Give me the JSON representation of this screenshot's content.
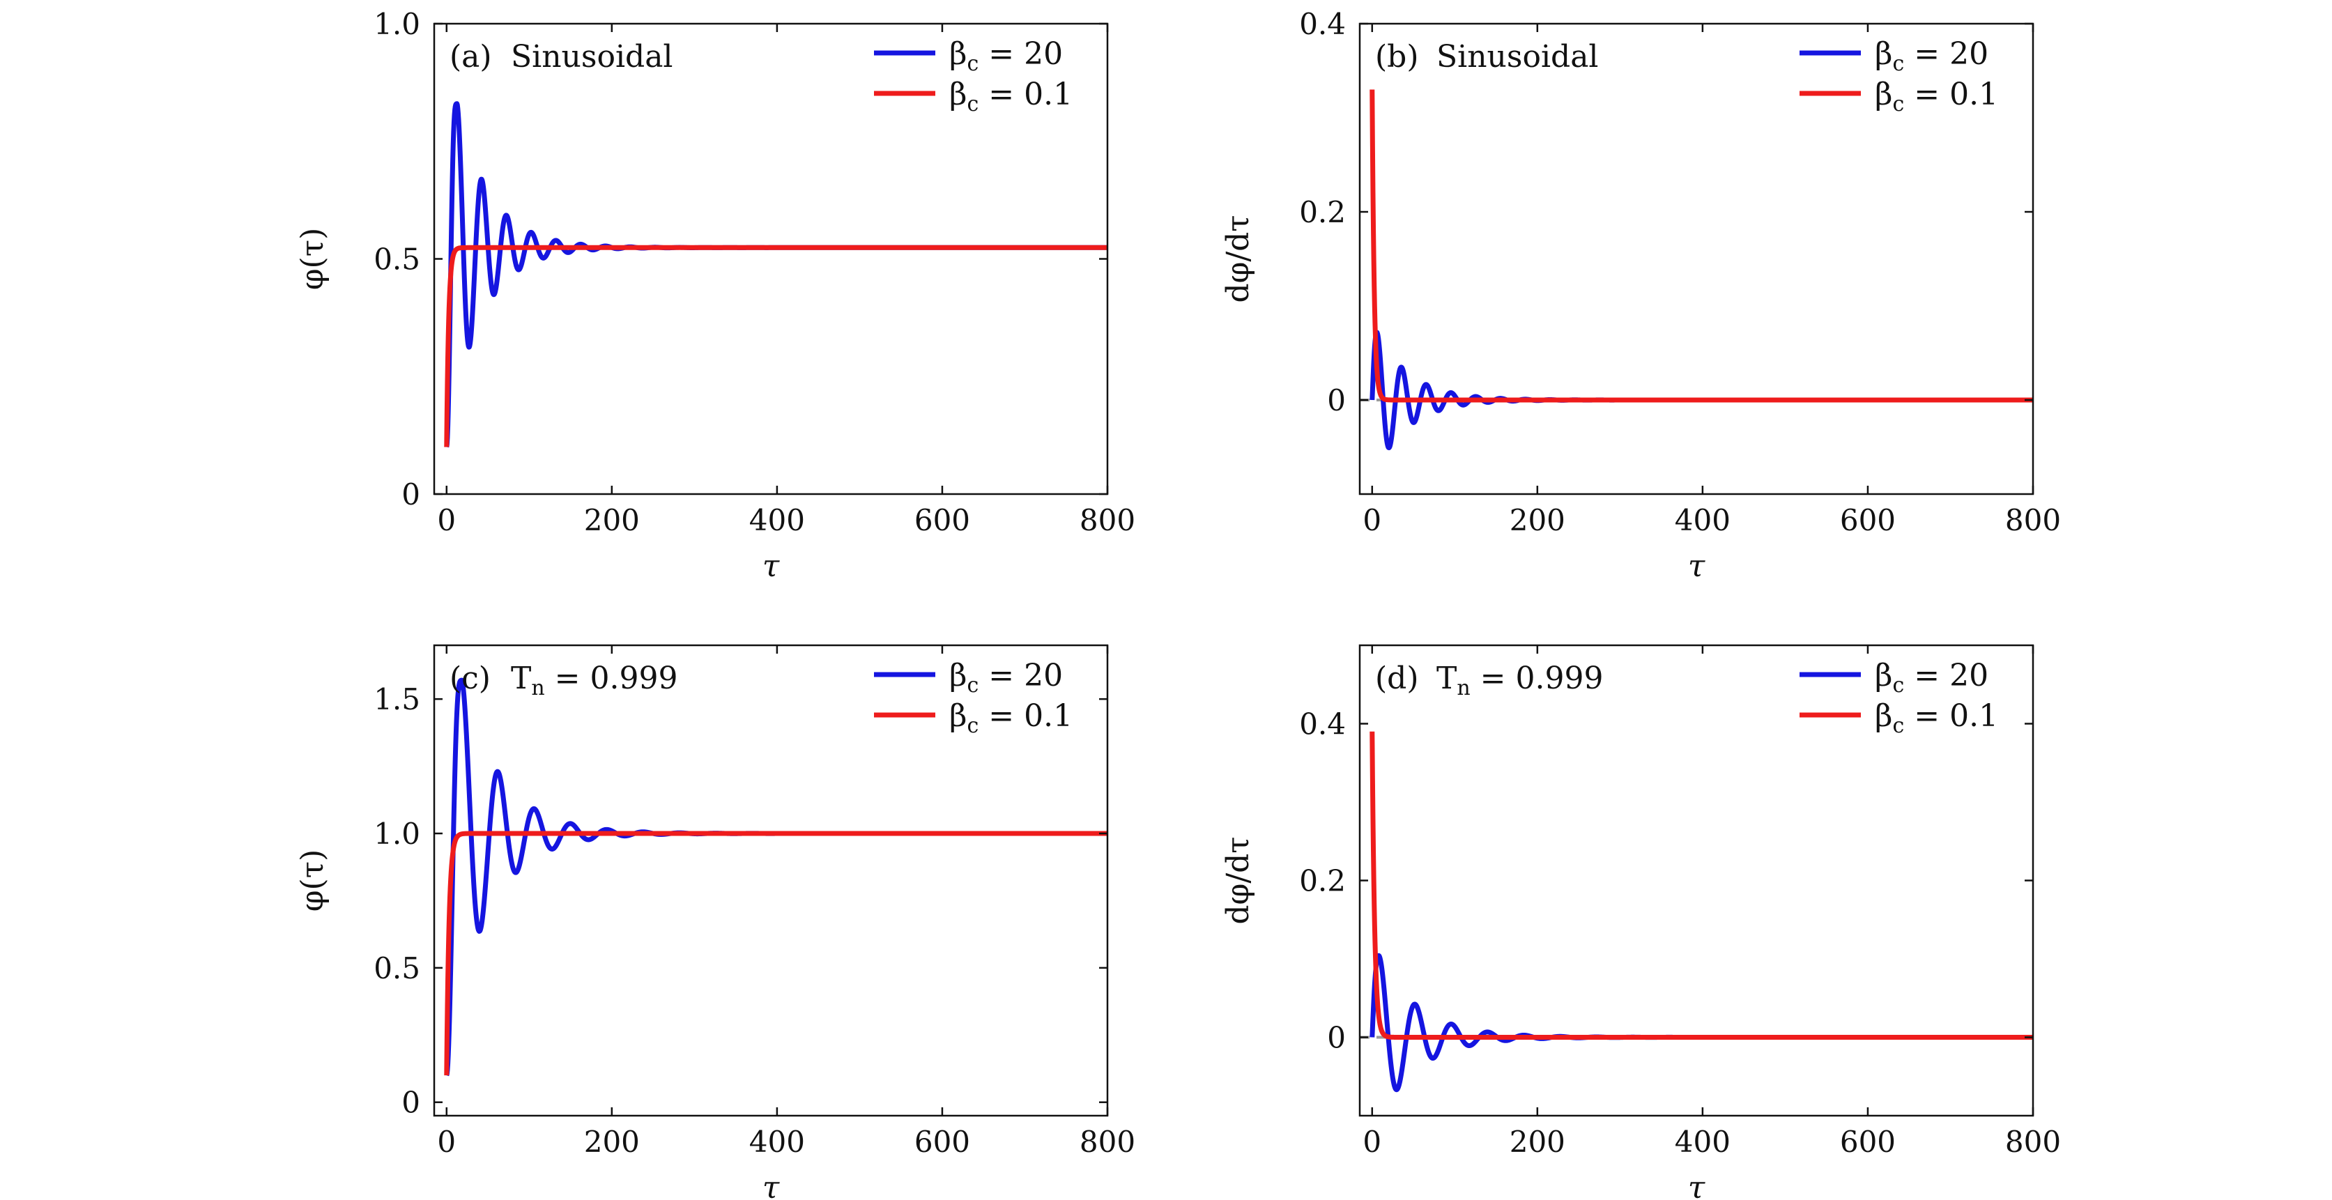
{
  "figure": {
    "background": "#ffffff",
    "colors": {
      "beta20": "#1515e0",
      "beta01": "#ee1c1c",
      "axes": "#111111",
      "reference": "#9a9a9a"
    }
  },
  "chart_data": [
    {
      "type": "line",
      "panel_label": "(a)",
      "panel_title": "Sinusoidal",
      "xlabel": "τ",
      "ylabel": "φ(τ)",
      "xlim": [
        -15,
        800
      ],
      "ylim": [
        0,
        1.0
      ],
      "xticks": [
        0,
        200,
        400,
        600,
        800
      ],
      "yticks": [
        0,
        0.5,
        1.0
      ],
      "ytick_labels": [
        "0",
        "0.5",
        "1.0"
      ],
      "grid": false,
      "legend": "top-right",
      "series": [
        {
          "name": "βc = 20",
          "name_parts": {
            "main": "β",
            "sub": "c",
            "rest": " = 20"
          },
          "color": "#1515e0",
          "model": {
            "kind": "damped",
            "y0": 0.1,
            "yinf": 0.524,
            "period": 30,
            "tau": 40,
            "risefrac": 0.85,
            "peak": 0.83
          }
        },
        {
          "name": "βc = 0.1",
          "name_parts": {
            "main": "β",
            "sub": "c",
            "rest": " = 0.1"
          },
          "color": "#ee1c1c",
          "model": {
            "kind": "exp",
            "y0": 0.1,
            "yinf": 0.524,
            "tau": 2.5
          }
        }
      ]
    },
    {
      "type": "line",
      "panel_label": "(b)",
      "panel_title": "Sinusoidal",
      "xlabel": "τ",
      "ylabel": "dφ/dτ",
      "xlim": [
        -15,
        800
      ],
      "ylim": [
        -0.1,
        0.4
      ],
      "xticks": [
        0,
        200,
        400,
        600,
        800
      ],
      "yticks": [
        0,
        0.2,
        0.4
      ],
      "ytick_labels": [
        "0",
        "0.2",
        "0.4"
      ],
      "grid": false,
      "legend": "top-right",
      "reference_line": {
        "y": 0,
        "style": "dashed"
      },
      "series": [
        {
          "name": "βc = 20",
          "name_parts": {
            "main": "β",
            "sub": "c",
            "rest": " = 20"
          },
          "color": "#1515e0",
          "model": {
            "kind": "dampedSine",
            "amp": 0.085,
            "period": 30,
            "tau": 40,
            "rise": 1.5
          }
        },
        {
          "name": "βc = 0.1",
          "name_parts": {
            "main": "β",
            "sub": "c",
            "rest": " = 0.1"
          },
          "color": "#ee1c1c",
          "model": {
            "kind": "spike",
            "peak": 0.33,
            "tau": 2.5
          }
        }
      ]
    },
    {
      "type": "line",
      "panel_label": "(c)",
      "panel_title": "Tn = 0.999",
      "panel_title_parts": {
        "main": "T",
        "sub": "n",
        "rest": " = 0.999"
      },
      "xlabel": "τ",
      "ylabel": "φ(τ)",
      "xlim": [
        -15,
        800
      ],
      "ylim": [
        -0.05,
        1.7
      ],
      "xticks": [
        0,
        200,
        400,
        600,
        800
      ],
      "yticks": [
        0,
        0.5,
        1.0,
        1.5
      ],
      "ytick_labels": [
        "0",
        "0.5",
        "1.0",
        "1.5"
      ],
      "grid": false,
      "legend": "top-right",
      "series": [
        {
          "name": "βc = 20",
          "name_parts": {
            "main": "β",
            "sub": "c",
            "rest": " = 20"
          },
          "color": "#1515e0",
          "model": {
            "kind": "damped",
            "y0": 0.1,
            "yinf": 1.0,
            "period": 44,
            "tau": 48,
            "risefrac": 0.85,
            "peak": 1.57
          }
        },
        {
          "name": "βc = 0.1",
          "name_parts": {
            "main": "β",
            "sub": "c",
            "rest": " = 0.1"
          },
          "color": "#ee1c1c",
          "model": {
            "kind": "exp",
            "y0": 0.1,
            "yinf": 1.0,
            "tau": 3
          }
        }
      ]
    },
    {
      "type": "line",
      "panel_label": "(d)",
      "panel_title": "Tn = 0.999",
      "panel_title_parts": {
        "main": "T",
        "sub": "n",
        "rest": " = 0.999"
      },
      "xlabel": "τ",
      "ylabel": "dφ/dτ",
      "xlim": [
        -15,
        800
      ],
      "ylim": [
        -0.1,
        0.5
      ],
      "xticks": [
        0,
        200,
        400,
        600,
        800
      ],
      "yticks": [
        0,
        0.2,
        0.4
      ],
      "ytick_labels": [
        "0",
        "0.2",
        "0.4"
      ],
      "grid": false,
      "legend": "top-right",
      "reference_line": {
        "y": 0,
        "style": "dashed"
      },
      "series": [
        {
          "name": "βc = 20",
          "name_parts": {
            "main": "β",
            "sub": "c",
            "rest": " = 20"
          },
          "color": "#1515e0",
          "model": {
            "kind": "dampedSine",
            "amp": 0.125,
            "period": 44,
            "tau": 48,
            "rise": 1.8
          }
        },
        {
          "name": "βc = 0.1",
          "name_parts": {
            "main": "β",
            "sub": "c",
            "rest": " = 0.1"
          },
          "color": "#ee1c1c",
          "model": {
            "kind": "spike",
            "peak": 0.39,
            "tau": 3
          }
        }
      ]
    }
  ]
}
